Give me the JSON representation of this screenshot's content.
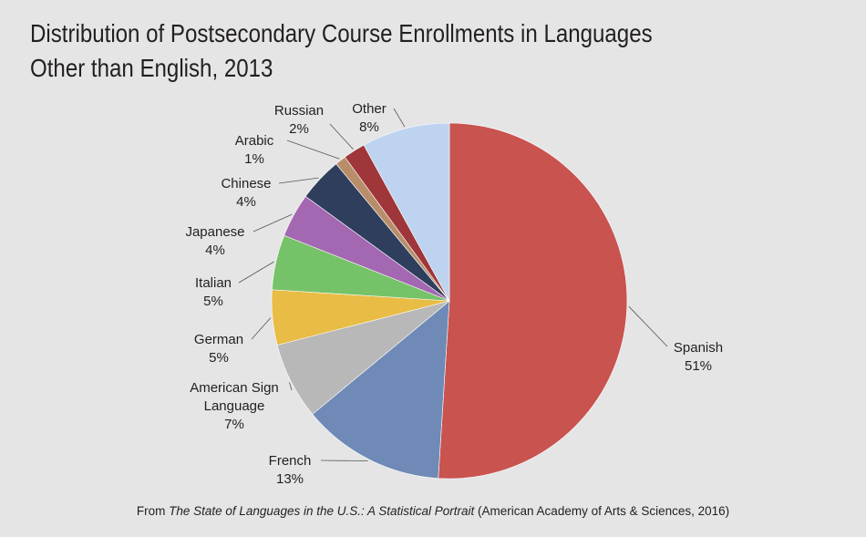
{
  "title_line1": "Distribution of Postsecondary Course Enrollments in Languages",
  "title_line2": "Other than English, 2013",
  "source": {
    "prefix": "From ",
    "title": "The State of Languages in the U.S.: A Statistical Portrait",
    "suffix": " (American Academy of Arts & Sciences, 2016)"
  },
  "chart_data": {
    "type": "pie",
    "title": "Distribution of Postsecondary Course Enrollments in Languages Other than English, 2013",
    "slices": [
      {
        "label": "Spanish",
        "value": 51,
        "value_label": "51%",
        "color": "#c8534f"
      },
      {
        "label": "French",
        "value": 13,
        "value_label": "13%",
        "color": "#6f8ab6"
      },
      {
        "label": "American Sign Language",
        "value": 7,
        "value_label": "7%",
        "color": "#b8b8b8"
      },
      {
        "label": "German",
        "value": 5,
        "value_label": "5%",
        "color": "#e8bc45"
      },
      {
        "label": "Italian",
        "value": 5,
        "value_label": "5%",
        "color": "#76c268"
      },
      {
        "label": "Japanese",
        "value": 4,
        "value_label": "4%",
        "color": "#a467b2"
      },
      {
        "label": "Chinese",
        "value": 4,
        "value_label": "4%",
        "color": "#2e3e5c"
      },
      {
        "label": "Arabic",
        "value": 1,
        "value_label": "1%",
        "color": "#b88e6a"
      },
      {
        "label": "Russian",
        "value": 2,
        "value_label": "2%",
        "color": "#9e363a"
      },
      {
        "label": "Other",
        "value": 8,
        "value_label": "8%",
        "color": "#bdd3ef"
      }
    ]
  }
}
